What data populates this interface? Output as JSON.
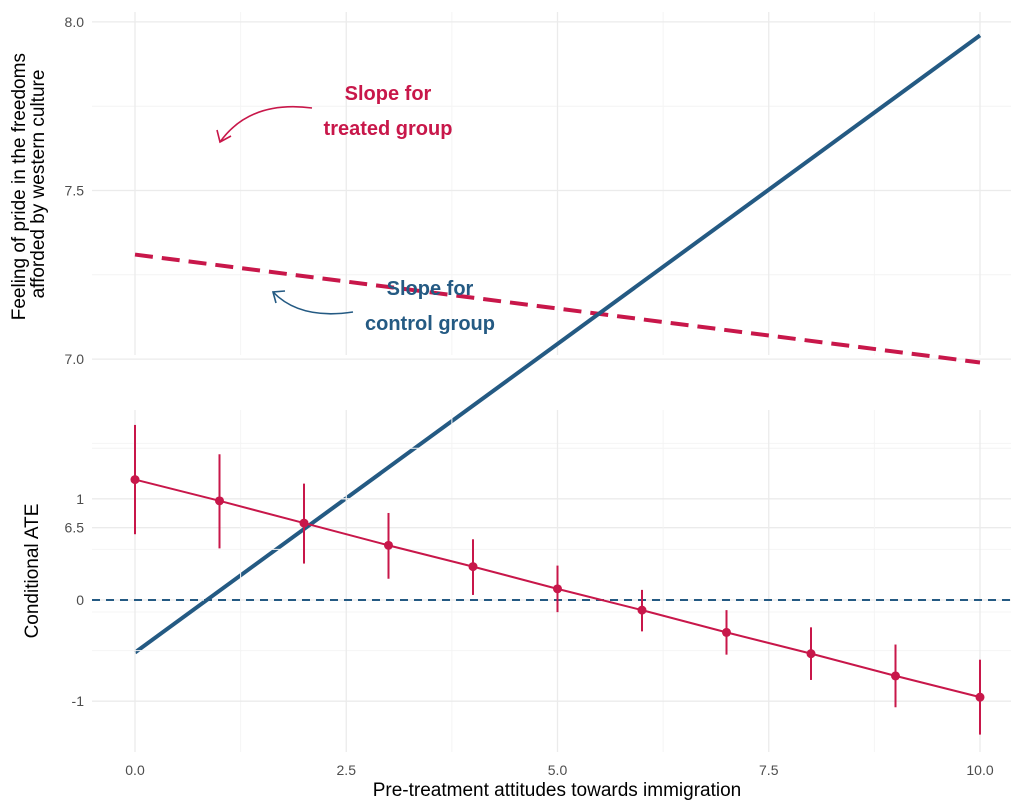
{
  "colors": {
    "treated": "#C8174A",
    "control": "#245A83",
    "grid_major": "#EBEBEB",
    "grid_minor": "#F4F4F4"
  },
  "chart_data": [
    {
      "type": "line",
      "title": "",
      "xlabel": "",
      "ylabel": "Feeling of pride in the freedoms afforded by western culture",
      "ylabel_lines": [
        "Feeling of pride in the freedoms",
        "afforded by western culture"
      ],
      "xlim": [
        0,
        10
      ],
      "ylim": [
        6.1,
        8.0
      ],
      "yticks": [
        6.5,
        7.0,
        7.5,
        8.0
      ],
      "ytick_labels": [
        "6.5",
        "7.0",
        "7.5",
        "8.0"
      ],
      "grid": true,
      "series": [
        {
          "style": "dashed",
          "color": "#C8174A",
          "x": [
            0,
            10
          ],
          "y": [
            7.31,
            6.99
          ]
        },
        {
          "style": "solid",
          "color": "#245A83",
          "x": [
            0,
            10
          ],
          "y": [
            6.13,
            7.96
          ]
        }
      ],
      "annotations": [
        {
          "lines": [
            "Slope for",
            "treated group"
          ],
          "color": "#C8174A",
          "text_at": [
            3.0,
            7.45
          ],
          "points_to": [
            1.0,
            7.28
          ]
        },
        {
          "lines": [
            "Slope for",
            "control group"
          ],
          "color": "#245A83",
          "text_at": [
            3.5,
            6.4
          ],
          "points_to": [
            1.6,
            6.42
          ]
        }
      ]
    },
    {
      "type": "scatter",
      "title": "",
      "xlabel": "Pre-treatment attitudes towards immigration",
      "ylabel": "Conditional ATE",
      "xlim": [
        0,
        10
      ],
      "ylim": [
        -1.45,
        1.85
      ],
      "xticks": [
        0,
        2.5,
        5,
        7.5,
        10
      ],
      "xtick_labels": [
        "0.0",
        "2.5",
        "5.0",
        "7.5",
        "10.0"
      ],
      "yticks": [
        -1,
        0,
        1
      ],
      "ytick_labels": [
        "-1",
        "0",
        "1"
      ],
      "grid": true,
      "reference_line": {
        "y": 0,
        "style": "dashed",
        "color": "#245A83"
      },
      "x": [
        0,
        1,
        2,
        3,
        4,
        5,
        6,
        7,
        8,
        9,
        10
      ],
      "y": [
        1.19,
        0.98,
        0.76,
        0.54,
        0.33,
        0.11,
        -0.1,
        -0.32,
        -0.53,
        -0.75,
        -0.96
      ],
      "ci_lower": [
        0.65,
        0.51,
        0.36,
        0.21,
        0.05,
        -0.12,
        -0.31,
        -0.54,
        -0.79,
        -1.06,
        -1.33
      ],
      "ci_upper": [
        1.73,
        1.44,
        1.15,
        0.86,
        0.6,
        0.34,
        0.1,
        -0.1,
        -0.27,
        -0.44,
        -0.59
      ],
      "color": "#C8174A"
    }
  ]
}
